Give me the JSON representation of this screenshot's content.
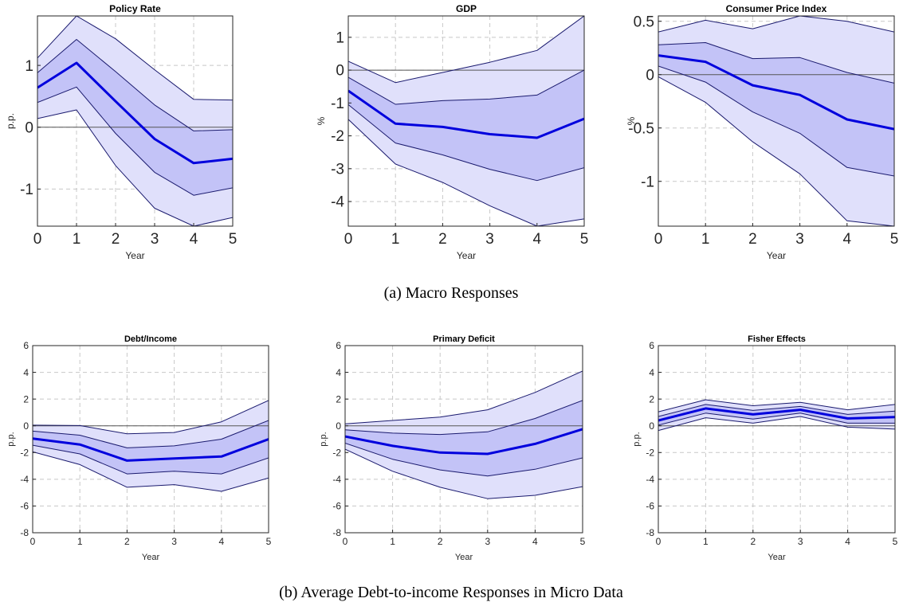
{
  "captions": {
    "macro": "(a)  Macro Responses",
    "micro": "(b)  Average Debt-to-income Responses in Micro Data"
  },
  "colors": {
    "band_outer": "#e0e0fb",
    "band_inner": "#c3c3f7",
    "band_line": "#1a1a6e",
    "median_line": "#0000dd",
    "zero_line": "#555555",
    "grid": "#c8c8c8"
  },
  "chart_data": [
    {
      "type": "area",
      "title": "Policy Rate",
      "xlabel": "Year",
      "ylabel": "p.p.",
      "xlim": [
        0,
        5
      ],
      "ylim": [
        -1.6,
        1.8
      ],
      "xticks": [
        0,
        1,
        2,
        3,
        4,
        5
      ],
      "yticks": [
        -1,
        0,
        1
      ],
      "grid": true,
      "zero_line": true,
      "x": [
        0,
        1,
        2,
        3,
        4,
        5
      ],
      "series": [
        {
          "role": "outer_upper",
          "values": [
            1.12,
            1.8,
            1.43,
            0.93,
            0.45,
            0.44
          ]
        },
        {
          "role": "inner_upper",
          "values": [
            0.88,
            1.42,
            0.9,
            0.36,
            -0.06,
            -0.04
          ]
        },
        {
          "role": "median",
          "values": [
            0.64,
            1.04,
            0.42,
            -0.19,
            -0.58,
            -0.51
          ]
        },
        {
          "role": "inner_lower",
          "values": [
            0.4,
            0.65,
            -0.1,
            -0.73,
            -1.1,
            -0.98
          ]
        },
        {
          "role": "outer_lower",
          "values": [
            0.14,
            0.28,
            -0.62,
            -1.31,
            -1.6,
            -1.46
          ]
        }
      ]
    },
    {
      "type": "area",
      "title": "GDP",
      "xlabel": "Year",
      "ylabel": "%",
      "xlim": [
        0,
        5
      ],
      "ylim": [
        -4.75,
        1.65
      ],
      "xticks": [
        0,
        1,
        2,
        3,
        4,
        5
      ],
      "yticks": [
        -4,
        -3,
        -2,
        -1,
        0,
        1
      ],
      "grid": true,
      "zero_line": true,
      "x": [
        0,
        1,
        2,
        3,
        4,
        5
      ],
      "series": [
        {
          "role": "outer_upper",
          "values": [
            0.27,
            -0.38,
            -0.07,
            0.24,
            0.6,
            1.65
          ]
        },
        {
          "role": "inner_upper",
          "values": [
            -0.22,
            -1.04,
            -0.93,
            -0.88,
            -0.76,
            0.0
          ]
        },
        {
          "role": "median",
          "values": [
            -0.63,
            -1.63,
            -1.73,
            -1.95,
            -2.06,
            -1.48
          ]
        },
        {
          "role": "inner_lower",
          "values": [
            -1.05,
            -2.22,
            -2.58,
            -3.02,
            -3.36,
            -2.97
          ]
        },
        {
          "role": "outer_lower",
          "values": [
            -1.5,
            -2.86,
            -3.42,
            -4.13,
            -4.75,
            -4.53
          ]
        }
      ]
    },
    {
      "type": "area",
      "title": "Consumer Price Index",
      "xlabel": "Year",
      "ylabel": "%",
      "xlim": [
        0,
        5
      ],
      "ylim": [
        -1.42,
        0.55
      ],
      "xticks": [
        0,
        1,
        2,
        3,
        4,
        5
      ],
      "yticks": [
        -1,
        -0.5,
        0,
        0.5
      ],
      "grid": true,
      "zero_line": true,
      "x": [
        0,
        1,
        2,
        3,
        4,
        5
      ],
      "series": [
        {
          "role": "outer_upper",
          "values": [
            0.4,
            0.51,
            0.43,
            0.55,
            0.5,
            0.4
          ]
        },
        {
          "role": "inner_upper",
          "values": [
            0.28,
            0.3,
            0.15,
            0.16,
            0.02,
            -0.08
          ]
        },
        {
          "role": "median",
          "values": [
            0.18,
            0.12,
            -0.1,
            -0.19,
            -0.42,
            -0.51
          ]
        },
        {
          "role": "inner_lower",
          "values": [
            0.08,
            -0.07,
            -0.35,
            -0.55,
            -0.87,
            -0.95
          ]
        },
        {
          "role": "outer_lower",
          "values": [
            -0.02,
            -0.26,
            -0.63,
            -0.93,
            -1.37,
            -1.42
          ]
        }
      ]
    },
    {
      "type": "area",
      "title": "Debt/Income",
      "xlabel": "Year",
      "ylabel": "p.p.",
      "xlim": [
        0,
        5
      ],
      "ylim": [
        -8,
        6
      ],
      "xticks": [
        0,
        1,
        2,
        3,
        4,
        5
      ],
      "yticks": [
        -8,
        -6,
        -4,
        -2,
        0,
        2,
        4,
        6
      ],
      "grid": true,
      "zero_line": true,
      "x": [
        0,
        1,
        2,
        3,
        4,
        5
      ],
      "series": [
        {
          "role": "outer_upper",
          "values": [
            0.05,
            0.02,
            -0.6,
            -0.5,
            0.3,
            1.9
          ]
        },
        {
          "role": "inner_upper",
          "values": [
            -0.4,
            -0.7,
            -1.65,
            -1.5,
            -1.0,
            0.4
          ]
        },
        {
          "role": "median",
          "values": [
            -0.95,
            -1.4,
            -2.6,
            -2.45,
            -2.3,
            -1.0
          ]
        },
        {
          "role": "inner_lower",
          "values": [
            -1.45,
            -2.1,
            -3.6,
            -3.4,
            -3.6,
            -2.4
          ]
        },
        {
          "role": "outer_lower",
          "values": [
            -1.95,
            -2.9,
            -4.6,
            -4.4,
            -4.9,
            -3.9
          ]
        }
      ]
    },
    {
      "type": "area",
      "title": "Primary Deficit",
      "xlabel": "Year",
      "ylabel": "p.p.",
      "xlim": [
        0,
        5
      ],
      "ylim": [
        -8,
        6
      ],
      "xticks": [
        0,
        1,
        2,
        3,
        4,
        5
      ],
      "yticks": [
        -8,
        -6,
        -4,
        -2,
        0,
        2,
        4,
        6
      ],
      "grid": true,
      "zero_line": true,
      "x": [
        0,
        1,
        2,
        3,
        4,
        5
      ],
      "series": [
        {
          "role": "outer_upper",
          "values": [
            0.15,
            0.4,
            0.65,
            1.2,
            2.5,
            4.1
          ]
        },
        {
          "role": "inner_upper",
          "values": [
            -0.3,
            -0.55,
            -0.65,
            -0.45,
            0.55,
            1.9
          ]
        },
        {
          "role": "median",
          "values": [
            -0.8,
            -1.5,
            -2.0,
            -2.1,
            -1.35,
            -0.25
          ]
        },
        {
          "role": "inner_lower",
          "values": [
            -1.3,
            -2.5,
            -3.3,
            -3.75,
            -3.25,
            -2.4
          ]
        },
        {
          "role": "outer_lower",
          "values": [
            -1.75,
            -3.4,
            -4.6,
            -5.45,
            -5.2,
            -4.55
          ]
        }
      ]
    },
    {
      "type": "area",
      "title": "Fisher Effects",
      "xlabel": "Year",
      "ylabel": "p.p.",
      "xlim": [
        0,
        5
      ],
      "ylim": [
        -8,
        6
      ],
      "xticks": [
        0,
        1,
        2,
        3,
        4,
        5
      ],
      "yticks": [
        -8,
        -6,
        -4,
        -2,
        0,
        2,
        4,
        6
      ],
      "grid": true,
      "zero_line": true,
      "x": [
        0,
        1,
        2,
        3,
        4,
        5
      ],
      "series": [
        {
          "role": "outer_upper",
          "values": [
            1.05,
            1.95,
            1.5,
            1.75,
            1.2,
            1.6
          ]
        },
        {
          "role": "inner_upper",
          "values": [
            0.7,
            1.6,
            1.15,
            1.45,
            0.85,
            1.1
          ]
        },
        {
          "role": "median",
          "values": [
            0.4,
            1.3,
            0.85,
            1.2,
            0.55,
            0.65
          ]
        },
        {
          "role": "inner_lower",
          "values": [
            0.05,
            0.95,
            0.5,
            0.95,
            0.2,
            0.2
          ]
        },
        {
          "role": "outer_lower",
          "values": [
            -0.35,
            0.6,
            0.2,
            0.7,
            -0.1,
            -0.25
          ]
        }
      ]
    }
  ]
}
